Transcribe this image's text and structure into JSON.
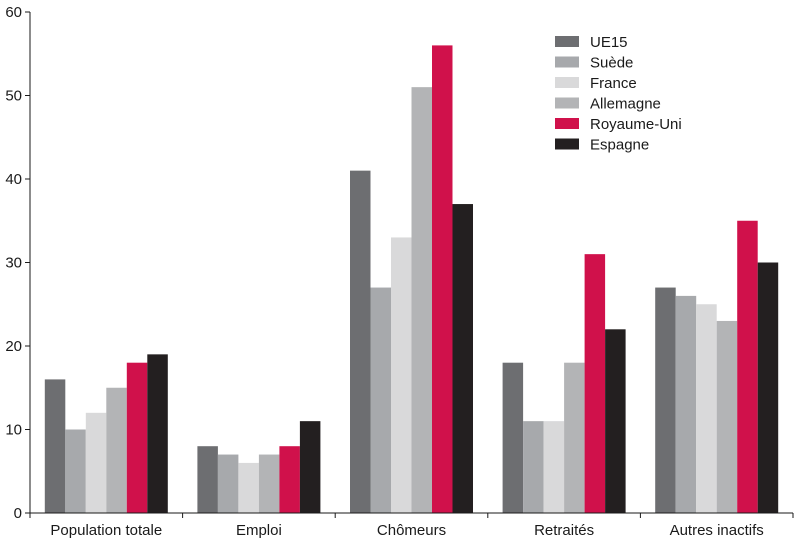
{
  "chart_data": {
    "type": "bar",
    "categories": [
      "Population totale",
      "Emploi",
      "Chômeurs",
      "Retraités",
      "Autres inactifs"
    ],
    "series": [
      {
        "name": "UE15",
        "color": "#6d6e71",
        "values": [
          16,
          8,
          41,
          18,
          27
        ]
      },
      {
        "name": "Suède",
        "color": "#a7a9ac",
        "values": [
          10,
          7,
          27,
          11,
          26
        ]
      },
      {
        "name": "France",
        "color": "#d9d9da",
        "values": [
          12,
          6,
          33,
          11,
          25
        ]
      },
      {
        "name": "Allemagne",
        "color": "#b3b4b6",
        "values": [
          15,
          7,
          51,
          18,
          23
        ]
      },
      {
        "name": "Royaume-Uni",
        "color": "#d0114b",
        "values": [
          18,
          8,
          56,
          31,
          35
        ]
      },
      {
        "name": "Espagne",
        "color": "#231f20",
        "values": [
          19,
          11,
          37,
          22,
          30
        ]
      }
    ],
    "ylim": [
      0,
      60
    ],
    "yticks": [
      0,
      10,
      20,
      30,
      40,
      50,
      60
    ],
    "grid": false,
    "legend_position": "top-right"
  }
}
